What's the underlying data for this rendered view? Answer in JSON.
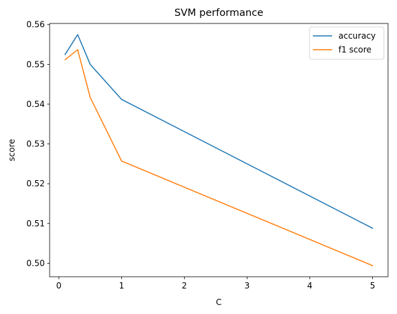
{
  "chart_data": {
    "type": "line",
    "title": "SVM performance",
    "xlabel": "C",
    "ylabel": "score",
    "xlim": [
      -0.147,
      5.247
    ],
    "ylim": [
      0.4966,
      0.5603
    ],
    "xticks": [
      0,
      1,
      2,
      3,
      4,
      5
    ],
    "yticks": [
      0.5,
      0.51,
      0.52,
      0.53,
      0.54,
      0.55,
      0.56
    ],
    "ytick_labels": [
      "0.50",
      "0.51",
      "0.52",
      "0.53",
      "0.54",
      "0.55",
      "0.56"
    ],
    "x": [
      0.1,
      0.3,
      0.5,
      1,
      5
    ],
    "series": [
      {
        "name": "accuracy",
        "color": "#1f77b4",
        "values": [
          0.5525,
          0.5575,
          0.55,
          0.5412,
          0.5088
        ]
      },
      {
        "name": "f1 score",
        "color": "#ff7f0e",
        "values": [
          0.5512,
          0.5537,
          0.5417,
          0.5257,
          0.4994
        ]
      }
    ],
    "legend": "top-right",
    "grid": false
  }
}
